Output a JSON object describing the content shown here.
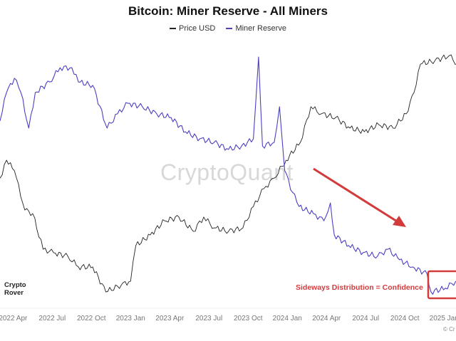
{
  "chart_data": {
    "type": "line",
    "title": "Bitcoin: Miner Reserve - All Miners",
    "xlabel": "",
    "ylabel": "",
    "x_unit": "months since 2022 Mar",
    "ylim": [
      0,
      100
    ],
    "y_note": "normalized (no y-axis shown)",
    "legend": "top-center",
    "grid": false,
    "x_ticks": [
      {
        "m": 1,
        "label": "2022 Apr"
      },
      {
        "m": 4,
        "label": "2022 Jul"
      },
      {
        "m": 7,
        "label": "2022 Oct"
      },
      {
        "m": 10,
        "label": "2023 Jan"
      },
      {
        "m": 13,
        "label": "2023 Apr"
      },
      {
        "m": 16,
        "label": "2023 Jul"
      },
      {
        "m": 19,
        "label": "2023 Oct"
      },
      {
        "m": 22,
        "label": "2024 Jan"
      },
      {
        "m": 25,
        "label": "2024 Apr"
      },
      {
        "m": 28,
        "label": "2024 Jul"
      },
      {
        "m": 31,
        "label": "2024 Oct"
      },
      {
        "m": 34,
        "label": "2025 Jan"
      }
    ],
    "series": [
      {
        "name": "Price USD",
        "color": "#222222",
        "x": [
          0,
          0.5,
          1.1,
          1.9,
          2.5,
          3.3,
          4.1,
          5.2,
          6.0,
          7.1,
          8.1,
          9.3,
          10.0,
          10.4,
          11.5,
          12.6,
          13.7,
          14.8,
          15.6,
          16.4,
          17.5,
          18.6,
          19.4,
          20.2,
          21.0,
          21.9,
          23.0,
          23.8,
          24.6,
          25.7,
          26.8,
          27.9,
          29.0,
          30.1,
          31.1,
          31.7,
          32.2,
          33.3,
          34.4,
          35.0
        ],
        "values": [
          48.6,
          55.4,
          51.4,
          36.5,
          35.1,
          21.6,
          20.3,
          18.9,
          14.9,
          14.9,
          5.4,
          8.1,
          9.5,
          23.0,
          27.0,
          32.4,
          33.8,
          28.4,
          33.8,
          29.7,
          28.4,
          29.7,
          37.8,
          44.6,
          48.6,
          55.4,
          62.2,
          75.7,
          73.0,
          71.6,
          67.6,
          66.2,
          68.9,
          67.6,
          73.0,
          81.1,
          91.9,
          93.2,
          95.1,
          91.9
        ]
      },
      {
        "name": "Miner Reserve",
        "color": "#4b3fc4",
        "x": [
          0,
          0.5,
          1.1,
          1.6,
          2.2,
          2.7,
          3.8,
          4.6,
          5.5,
          6.0,
          7.1,
          8.2,
          9.0,
          9.8,
          10.9,
          12.0,
          13.1,
          14.2,
          15.3,
          16.4,
          17.5,
          18.5,
          19.4,
          19.8,
          20.1,
          21.0,
          21.4,
          21.8,
          22.4,
          22.9,
          24.0,
          24.8,
          25.3,
          25.6,
          26.7,
          27.8,
          28.9,
          29.7,
          30.6,
          31.6,
          32.7,
          33.0,
          34.1,
          34.9
        ],
        "values": [
          70.3,
          81.1,
          86.5,
          81.1,
          67.6,
          81.1,
          85.1,
          90.5,
          90.5,
          85.1,
          83.8,
          67.6,
          73.0,
          77.0,
          75.7,
          73.0,
          71.6,
          66.2,
          63.5,
          62.2,
          59.5,
          60.8,
          63.5,
          94.6,
          60.8,
          62.2,
          75.7,
          51.4,
          43.2,
          37.8,
          35.1,
          32.4,
          39.2,
          27.0,
          23.0,
          20.3,
          18.9,
          21.6,
          17.6,
          14.9,
          12.2,
          5.4,
          6.8,
          9.5
        ]
      }
    ],
    "annotations": {
      "text": "Sideways Distribution = Confidence",
      "color": "#d33b3b"
    },
    "watermark": "CryptoQuant",
    "logo": [
      "Crypto",
      "Rover"
    ],
    "copyright": "© Cr"
  }
}
